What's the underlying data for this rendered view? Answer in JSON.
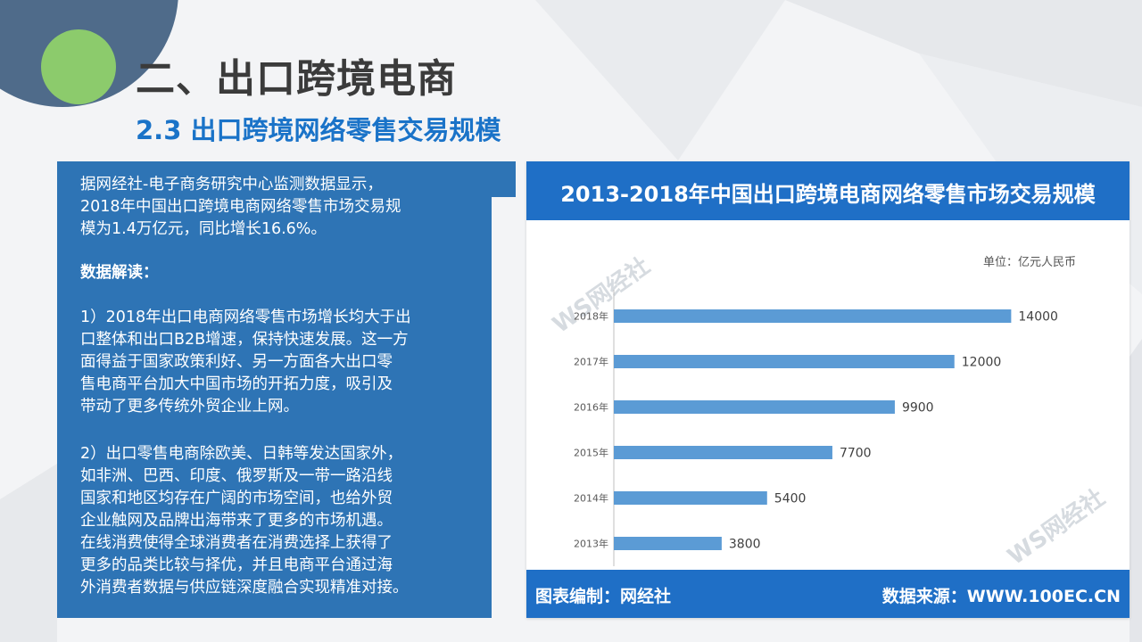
{
  "page": {
    "title": "二、出口跨境电商",
    "subtitle": "2.3 出口跨境网络零售交易规模"
  },
  "text_panel": {
    "para1": [
      "据网经社-电子商务研究中心监测数据显示，",
      "2018年中国出口跨境电商网络零售市场交易规",
      "模为1.4万亿元，同比增长16.6%。"
    ],
    "heading": "数据解读：",
    "para2": [
      "1）2018年出口电商网络零售市场增长均大于出",
      "口整体和出口B2B增速，保持快速发展。这一方",
      "面得益于国家政策利好、另一方面各大出口零",
      "售电商平台加大中国市场的开拓力度，吸引及",
      "带动了更多传统外贸企业上网。"
    ],
    "para3": [
      "2）出口零售电商除欧美、日韩等发达国家外，",
      "如非洲、巴西、印度、俄罗斯及一带一路沿线",
      "国家和地区均存在广阔的市场空间，也给外贸",
      "企业触网及品牌出海带来了更多的市场机遇。",
      "在线消费使得全球消费者在消费选择上获得了",
      "更多的品类比较与择优，并且电商平台通过海",
      "外消费者数据与供应链深度融合实现精准对接。"
    ]
  },
  "chart_card": {
    "unit": "单位：亿元人民币",
    "footer_left": "图表编制：网经社",
    "footer_right": "数据来源：WWW.100EC.CN",
    "watermark": "WS网经社"
  },
  "colors": {
    "accent": "#1f6fc6",
    "panel": "#2e74b5",
    "bar": "#5b9bd5"
  },
  "chart_data": {
    "type": "bar",
    "orientation": "horizontal",
    "title": "2013-2018年中国出口跨境电商网络零售市场交易规模",
    "categories": [
      "2018年",
      "2017年",
      "2016年",
      "2015年",
      "2014年",
      "2013年"
    ],
    "values": [
      14000,
      12000,
      9900,
      7700,
      5400,
      3800
    ],
    "xlim": [
      0,
      16000
    ],
    "xticks": [
      0,
      2000,
      4000,
      6000,
      8000,
      10000,
      12000,
      14000,
      16000
    ],
    "ylabel": "单位：亿元人民币",
    "grid": false,
    "legend": "none"
  }
}
